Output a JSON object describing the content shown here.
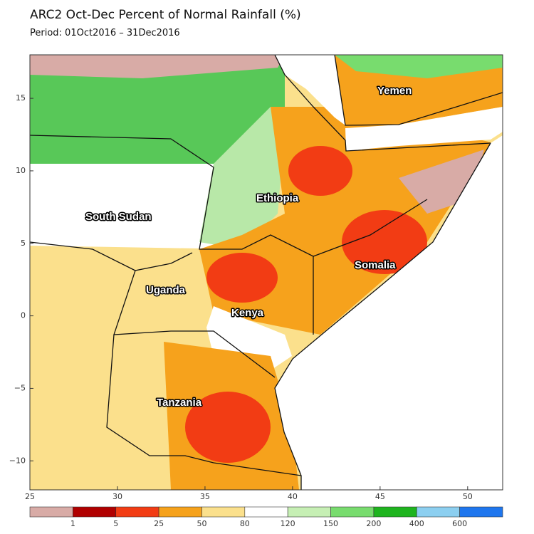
{
  "header": {
    "title": "ARC2 Oct-Dec Percent of Normal Rainfall (%)",
    "subtitle": "Period: 01Oct2016 – 31Dec2016"
  },
  "map": {
    "xlim": [
      25,
      52
    ],
    "ylim": [
      -12,
      18
    ],
    "xticks": [
      25,
      30,
      35,
      40,
      45,
      50
    ],
    "yticks": [
      {
        "value": -10,
        "label": "−10"
      },
      {
        "value": -5,
        "label": "−5"
      },
      0,
      5,
      10,
      15
    ],
    "labels": [
      "Yemen",
      "Ethiopia",
      "South Sudan",
      "Somalia",
      "Uganda",
      "Kenya",
      "Tanzania"
    ]
  },
  "colorbar": {
    "colors": [
      "#d8aba6",
      "#b00000",
      "#f23c14",
      "#f6a21c",
      "#fbe08c",
      "#ffffff",
      "#c6efb4",
      "#78dc6e",
      "#1eb41e",
      "#8ccff0",
      "#1e76ee"
    ],
    "labels": [
      "1",
      "5",
      "25",
      "50",
      "80",
      "120",
      "150",
      "200",
      "400",
      "600"
    ]
  }
}
